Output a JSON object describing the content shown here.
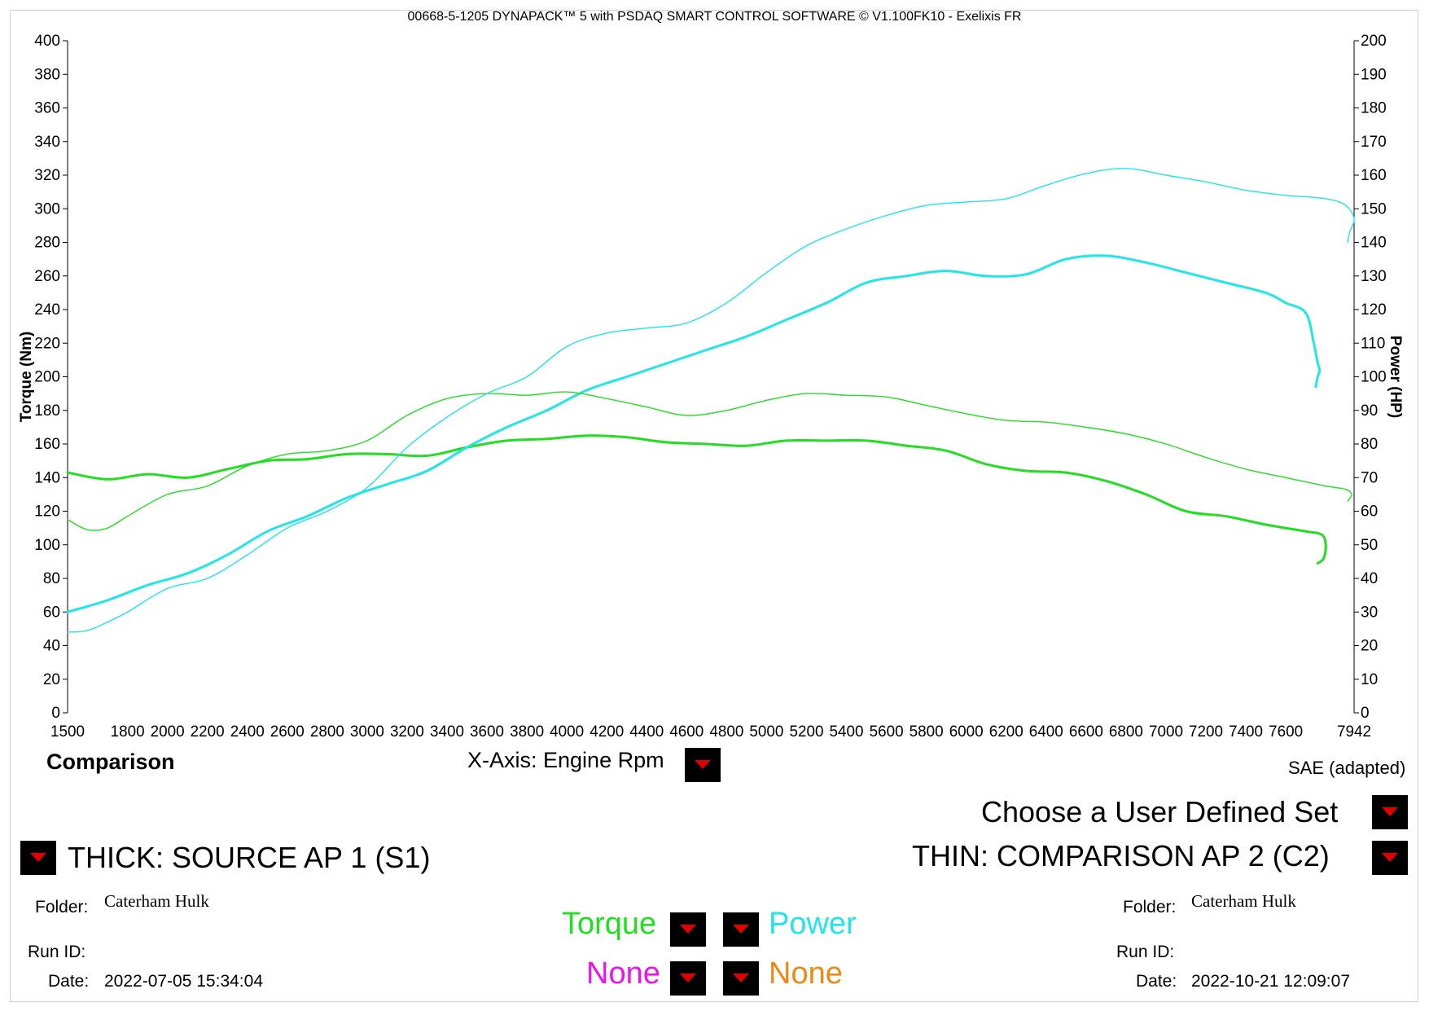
{
  "header": {
    "title": "00668-5-1205 DYNAPACK™ 5 with PSDAQ SMART CONTROL SOFTWARE © V1.100FK10 - Exelixis FR"
  },
  "colors": {
    "torque": "#22dd22",
    "power": "#22e5e5",
    "none_left": "#ee11ee",
    "none_right": "#ee8811",
    "dropdown": "#000000",
    "dropdown_arrow": "#e00000"
  },
  "chart_data": {
    "type": "line",
    "xlabel": "",
    "ylabel": "Torque (Nm)",
    "y2label": "Power (HP)",
    "xlim": [
      1500,
      7942
    ],
    "ylim": [
      0,
      400
    ],
    "y2lim": [
      0,
      200
    ],
    "x_ticks": [
      "1500",
      "1800",
      "2000",
      "2200",
      "2400",
      "2600",
      "2800",
      "3000",
      "3200",
      "3400",
      "3600",
      "3800",
      "4000",
      "4200",
      "4400",
      "4600",
      "4800",
      "5000",
      "5200",
      "5400",
      "5600",
      "5800",
      "6000",
      "6200",
      "6400",
      "6600",
      "6800",
      "7000",
      "7200",
      "7400",
      "7600",
      "7942"
    ],
    "y_ticks": [
      "0",
      "20",
      "40",
      "60",
      "80",
      "100",
      "120",
      "140",
      "160",
      "180",
      "200",
      "220",
      "240",
      "260",
      "280",
      "300",
      "320",
      "340",
      "360",
      "380",
      "400"
    ],
    "y2_ticks": [
      "0",
      "10",
      "20",
      "30",
      "40",
      "50",
      "60",
      "70",
      "80",
      "90",
      "100",
      "110",
      "120",
      "130",
      "140",
      "150",
      "160",
      "170",
      "180",
      "190",
      "200"
    ],
    "grid": false,
    "series": [
      {
        "line": "thick",
        "quantity": "torque",
        "axis": "left",
        "x": [
          1500,
          1700,
          1900,
          2100,
          2300,
          2500,
          2700,
          2900,
          3100,
          3300,
          3500,
          3700,
          3900,
          4100,
          4300,
          4500,
          4700,
          4900,
          5100,
          5300,
          5500,
          5700,
          5900,
          6100,
          6300,
          6500,
          6700,
          6900,
          7100,
          7300,
          7500,
          7700,
          7780,
          7800,
          7790,
          7760
        ],
        "y": [
          143,
          139,
          142,
          140,
          145,
          150,
          151,
          154,
          154,
          153,
          158,
          162,
          163,
          165,
          164,
          161,
          160,
          159,
          162,
          162,
          162,
          159,
          156,
          148,
          144,
          143,
          138,
          130,
          120,
          117,
          112,
          108,
          106,
          100,
          92,
          89
        ]
      },
      {
        "line": "thick",
        "quantity": "power",
        "axis": "right",
        "x": [
          1500,
          1700,
          1900,
          2100,
          2300,
          2500,
          2700,
          2900,
          3100,
          3300,
          3500,
          3700,
          3900,
          4100,
          4300,
          4500,
          4700,
          4900,
          5100,
          5300,
          5500,
          5700,
          5900,
          6100,
          6300,
          6500,
          6700,
          6900,
          7100,
          7300,
          7500,
          7600,
          7700,
          7740,
          7760,
          7770,
          7760,
          7750
        ],
        "y": [
          30,
          33.5,
          38,
          41.5,
          47,
          54,
          58.5,
          64,
          68,
          72,
          79,
          85,
          90,
          96,
          100,
          104,
          108,
          112,
          117,
          122,
          128,
          130,
          131.5,
          130,
          130.5,
          135,
          136,
          134,
          131,
          128,
          125,
          122,
          119,
          110,
          104,
          102,
          100,
          97
        ]
      },
      {
        "line": "thin",
        "quantity": "torque",
        "axis": "left",
        "x": [
          1500,
          1600,
          1700,
          1800,
          2000,
          2200,
          2400,
          2600,
          2800,
          3000,
          3200,
          3400,
          3600,
          3800,
          4000,
          4200,
          4400,
          4600,
          4800,
          5000,
          5200,
          5400,
          5600,
          5800,
          6000,
          6200,
          6400,
          6600,
          6800,
          7000,
          7200,
          7400,
          7600,
          7800,
          7900,
          7930,
          7910
        ],
        "y": [
          115,
          109,
          110,
          117,
          130,
          135,
          147,
          154,
          156,
          162,
          177,
          187,
          190,
          189,
          191,
          187,
          182,
          177,
          180,
          186,
          190,
          189,
          188,
          183,
          178,
          174,
          173,
          170,
          166,
          160,
          152,
          145,
          140,
          135,
          133,
          130,
          126
        ]
      },
      {
        "line": "thin",
        "quantity": "power",
        "axis": "right",
        "x": [
          1500,
          1600,
          1700,
          1800,
          2000,
          2200,
          2400,
          2600,
          2800,
          3000,
          3200,
          3400,
          3600,
          3800,
          4000,
          4200,
          4400,
          4600,
          4800,
          5000,
          5200,
          5400,
          5600,
          5800,
          6000,
          6200,
          6400,
          6600,
          6800,
          7000,
          7200,
          7400,
          7600,
          7800,
          7900,
          7942,
          7920,
          7910
        ],
        "y": [
          24,
          24.5,
          27,
          30,
          37,
          40,
          47,
          55,
          60,
          67,
          79,
          88,
          95,
          100,
          109,
          113,
          114.5,
          116,
          122,
          131,
          139,
          144,
          148,
          151,
          152,
          153,
          157,
          160.5,
          162,
          160,
          158,
          155.5,
          154,
          153,
          151,
          147,
          143,
          140
        ]
      }
    ]
  },
  "footer": {
    "comparison_label": "Comparison",
    "xaxis_label": "X-Axis: Engine Rpm",
    "sae_label": "SAE (adapted)",
    "user_set_label": "Choose a User Defined Set",
    "source_label": "THICK: SOURCE AP 1 (S1)",
    "comparison_run_label": "THIN: COMPARISON AP 2 (C2)",
    "left": {
      "folder_label": "Folder:",
      "folder_value": "Caterham Hulk",
      "runid_label": "Run ID:",
      "runid_value": "",
      "date_label": "Date:",
      "date_value": "2022-07-05 15:34:04"
    },
    "right": {
      "folder_label": "Folder:",
      "folder_value": "Caterham Hulk",
      "runid_label": "Run ID:",
      "runid_value": "",
      "date_label": "Date:",
      "date_value": "2022-10-21 12:09:07"
    },
    "selector": {
      "torque_label": "Torque",
      "power_label": "Power",
      "none_left_label": "None",
      "none_right_label": "None"
    }
  }
}
